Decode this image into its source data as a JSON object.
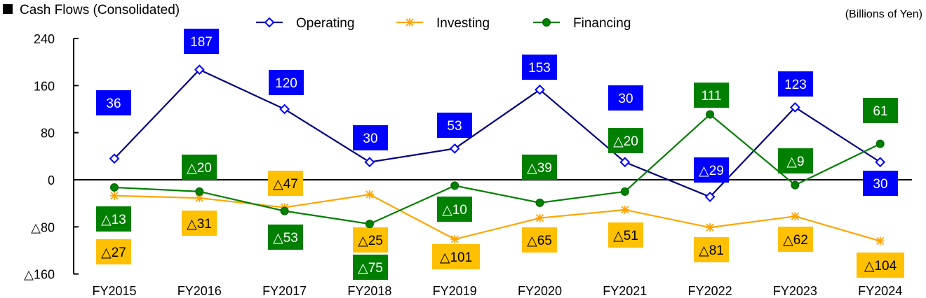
{
  "chart_data": {
    "type": "line",
    "title": "Cash Flows (Consolidated)",
    "unit_label": "(Billions of Yen)",
    "categories": [
      "FY2015",
      "FY2016",
      "FY2017",
      "FY2018",
      "FY2019",
      "FY2020",
      "FY2021",
      "FY2022",
      "FY2023",
      "FY2024"
    ],
    "ylim": [
      -160,
      240
    ],
    "yticks": [
      240,
      160,
      80,
      0,
      -80,
      -160
    ],
    "ytick_labels": [
      "240",
      "160",
      "80",
      "0",
      "△80",
      "△160"
    ],
    "grid": false,
    "legend_position": "top",
    "series": [
      {
        "name": "Operating",
        "color": "#000080",
        "marker": "diamond-open",
        "label_bg": "#0000FF",
        "label_fg": "#FFFFFF",
        "values": [
          36,
          187,
          120,
          30,
          53,
          153,
          30,
          -29,
          123,
          30
        ],
        "data_labels": [
          "36",
          "187",
          "120",
          "30",
          "53",
          "153",
          "30",
          "△29",
          "123",
          "30"
        ]
      },
      {
        "name": "Investing",
        "color": "#FFA500",
        "marker": "asterisk",
        "label_bg": "#FFC000",
        "label_fg": "#000000",
        "values": [
          -27,
          -31,
          -47,
          -25,
          -101,
          -65,
          -51,
          -81,
          -62,
          -104
        ],
        "data_labels": [
          "△27",
          "△31",
          "△47",
          "△25",
          "△101",
          "△65",
          "△51",
          "△81",
          "△62",
          "△104"
        ]
      },
      {
        "name": "Financing",
        "color": "#008000",
        "marker": "circle-filled",
        "label_bg": "#008000",
        "label_fg": "#FFFFFF",
        "values": [
          -13,
          -20,
          -53,
          -75,
          -10,
          -39,
          -20,
          111,
          -9,
          61
        ],
        "data_labels": [
          "△13",
          "△20",
          "△53",
          "△75",
          "△10",
          "△39",
          "△20",
          "111",
          "△9",
          "61"
        ]
      }
    ]
  }
}
